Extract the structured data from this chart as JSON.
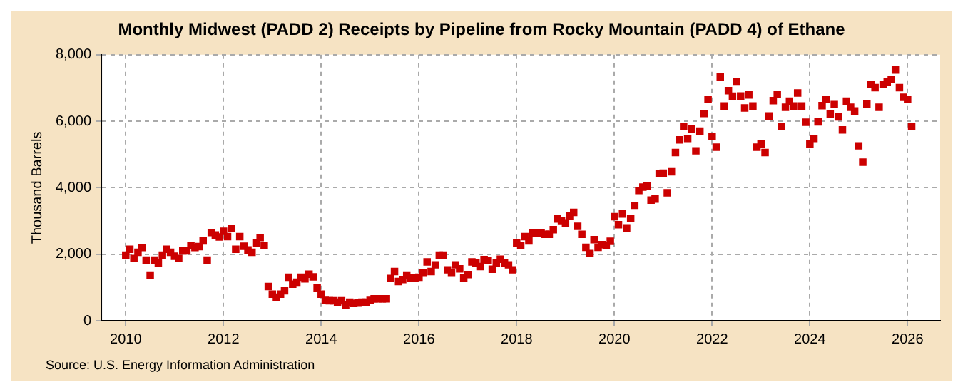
{
  "chart_data": {
    "type": "scatter",
    "title": "Monthly Midwest (PADD 2) Receipts by Pipeline from Rocky Mountain (PADD 4) of Ethane",
    "ylabel": "Thousand Barrels",
    "annotations": [
      "Source: U.S. Energy Information Administration"
    ],
    "x": [
      "2010-01",
      "2010-02",
      "2010-03",
      "2010-04",
      "2010-05",
      "2010-06",
      "2010-07",
      "2010-08",
      "2010-09",
      "2010-10",
      "2010-11",
      "2010-12",
      "2011-01",
      "2011-02",
      "2011-03",
      "2011-04",
      "2011-05",
      "2011-06",
      "2011-07",
      "2011-08",
      "2011-09",
      "2011-10",
      "2011-11",
      "2011-12",
      "2012-01",
      "2012-02",
      "2012-03",
      "2012-04",
      "2012-05",
      "2012-06",
      "2012-07",
      "2012-08",
      "2012-09",
      "2012-10",
      "2012-11",
      "2012-12",
      "2013-01",
      "2013-02",
      "2013-03",
      "2013-04",
      "2013-05",
      "2013-06",
      "2013-07",
      "2013-08",
      "2013-09",
      "2013-10",
      "2013-11",
      "2013-12",
      "2014-01",
      "2014-02",
      "2014-03",
      "2014-04",
      "2014-05",
      "2014-06",
      "2014-07",
      "2014-08",
      "2014-09",
      "2014-10",
      "2014-11",
      "2014-12",
      "2015-01",
      "2015-02",
      "2015-03",
      "2015-04",
      "2015-05",
      "2015-06",
      "2015-07",
      "2015-08",
      "2015-09",
      "2015-10",
      "2015-11",
      "2015-12",
      "2016-01",
      "2016-02",
      "2016-03",
      "2016-04",
      "2016-05",
      "2016-06",
      "2016-07",
      "2016-08",
      "2016-09",
      "2016-10",
      "2016-11",
      "2016-12",
      "2017-01",
      "2017-02",
      "2017-03",
      "2017-04",
      "2017-05",
      "2017-06",
      "2017-07",
      "2017-08",
      "2017-09",
      "2017-10",
      "2017-11",
      "2017-12",
      "2018-01",
      "2018-02",
      "2018-03",
      "2018-04",
      "2018-05",
      "2018-06",
      "2018-07",
      "2018-08",
      "2018-09",
      "2018-10",
      "2018-11",
      "2018-12",
      "2019-01",
      "2019-02",
      "2019-03",
      "2019-04",
      "2019-05",
      "2019-06",
      "2019-07",
      "2019-08",
      "2019-09",
      "2019-10",
      "2019-11",
      "2019-12",
      "2020-01",
      "2020-02",
      "2020-03",
      "2020-04",
      "2020-05",
      "2020-06",
      "2020-07",
      "2020-08",
      "2020-09",
      "2020-10",
      "2020-11",
      "2020-12",
      "2021-01",
      "2021-02",
      "2021-03",
      "2021-04",
      "2021-05",
      "2021-06",
      "2021-07",
      "2021-08",
      "2021-09",
      "2021-10",
      "2021-11",
      "2021-12",
      "2022-01",
      "2022-02",
      "2022-03",
      "2022-04",
      "2022-05",
      "2022-06",
      "2022-07",
      "2022-08",
      "2022-09",
      "2022-10",
      "2022-11",
      "2022-12",
      "2023-01",
      "2023-02",
      "2023-03",
      "2023-04",
      "2023-05",
      "2023-06",
      "2023-07",
      "2023-08",
      "2023-09",
      "2023-10",
      "2023-11",
      "2023-12",
      "2024-01",
      "2024-02",
      "2024-03",
      "2024-04",
      "2024-05",
      "2024-06",
      "2024-07",
      "2024-08",
      "2024-09",
      "2024-10",
      "2024-11",
      "2024-12",
      "2025-01",
      "2025-02",
      "2025-03",
      "2025-04",
      "2025-05",
      "2025-06",
      "2025-07",
      "2025-08",
      "2025-09",
      "2025-10",
      "2025-11",
      "2025-12",
      "2026-01",
      "2026-02"
    ],
    "series": [
      {
        "color": "#cc0000",
        "values": [
          1970,
          2150,
          1870,
          2060,
          2200,
          1820,
          1370,
          1820,
          1730,
          1970,
          2150,
          2060,
          1940,
          1870,
          2100,
          2100,
          2260,
          2200,
          2230,
          2400,
          1820,
          2650,
          2580,
          2520,
          2690,
          2530,
          2770,
          2150,
          2530,
          2240,
          2130,
          2060,
          2340,
          2500,
          2260,
          1030,
          800,
          710,
          800,
          900,
          1310,
          1100,
          1160,
          1310,
          1260,
          1400,
          1320,
          980,
          800,
          610,
          600,
          600,
          560,
          600,
          470,
          560,
          520,
          530,
          560,
          560,
          610,
          660,
          660,
          660,
          660,
          1270,
          1480,
          1180,
          1240,
          1370,
          1290,
          1290,
          1310,
          1450,
          1770,
          1480,
          1680,
          1970,
          1970,
          1530,
          1450,
          1680,
          1560,
          1290,
          1390,
          1770,
          1740,
          1630,
          1840,
          1810,
          1550,
          1730,
          1850,
          1730,
          1680,
          1530,
          2340,
          2260,
          2530,
          2400,
          2630,
          2630,
          2630,
          2600,
          2600,
          2740,
          3060,
          3010,
          2940,
          3150,
          3260,
          2840,
          2600,
          2210,
          2020,
          2440,
          2210,
          2290,
          2260,
          2390,
          3130,
          2890,
          3210,
          2790,
          3080,
          3470,
          3920,
          4020,
          4050,
          3630,
          3660,
          4420,
          4440,
          3850,
          4480,
          5060,
          5440,
          5840,
          5480,
          5760,
          5110,
          5700,
          6230,
          6660,
          5540,
          5220,
          7330,
          6460,
          6920,
          6750,
          7200,
          6760,
          6400,
          6790,
          6460,
          5220,
          5320,
          5060,
          6160,
          6620,
          6810,
          5840,
          6420,
          6600,
          6460,
          6850,
          6460,
          5970,
          5320,
          5480,
          5980,
          6470,
          6660,
          6220,
          6500,
          6130,
          5740,
          6600,
          6420,
          6310,
          5260,
          4770,
          6520,
          7100,
          7010,
          6420,
          7100,
          7180,
          7260,
          7540,
          7010,
          6720,
          6660,
          5840
        ]
      }
    ],
    "xlim": [
      "2009-07",
      "2026-09"
    ],
    "xticks": [
      "2010",
      "2012",
      "2014",
      "2016",
      "2018",
      "2020",
      "2022",
      "2024",
      "2026"
    ],
    "ylim": [
      0,
      8000
    ],
    "yticks": [
      {
        "value": 0,
        "label": "0"
      },
      {
        "value": 2000,
        "label": "2,000"
      },
      {
        "value": 4000,
        "label": "4,000"
      },
      {
        "value": 6000,
        "label": "6,000"
      },
      {
        "value": 8000,
        "label": "8,000"
      }
    ],
    "grid": true,
    "marker": "square",
    "legend": false
  }
}
